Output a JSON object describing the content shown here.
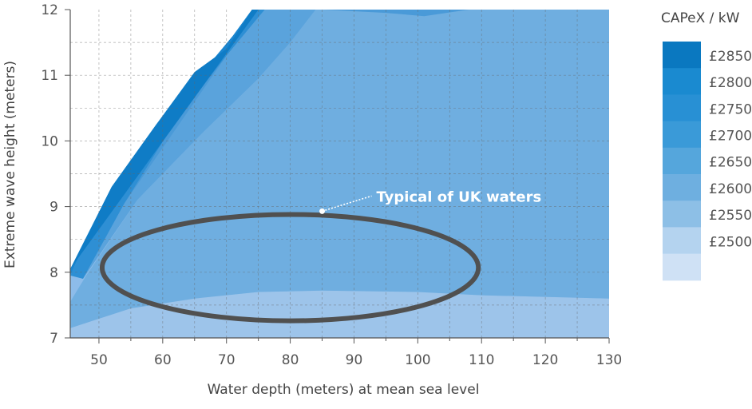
{
  "chart_data": {
    "type": "area",
    "xlabel": "Water depth (meters) at mean sea level",
    "ylabel": "Extreme wave height (meters)",
    "xlim": [
      45.5,
      130
    ],
    "ylim": [
      7,
      12
    ],
    "x_ticks": [
      50,
      60,
      70,
      80,
      90,
      100,
      110,
      120,
      130
    ],
    "y_ticks": [
      7,
      8,
      9,
      10,
      11,
      12
    ],
    "grid": true,
    "legend": {
      "title": "CAPeX / kW",
      "placement": "right",
      "entries": [
        {
          "label": "£2850",
          "color": "#0a78c0"
        },
        {
          "label": "£2800",
          "color": "#1a8ad0"
        },
        {
          "label": "£2750",
          "color": "#2890d4"
        },
        {
          "label": "£2700",
          "color": "#3a9ad8"
        },
        {
          "label": "£2650",
          "color": "#55a6dc"
        },
        {
          "label": "£2600",
          "color": "#6eafe0"
        },
        {
          "label": "£2550",
          "color": "#8dbfe6"
        },
        {
          "label": "£2500",
          "color": "#b4d3ef"
        },
        {
          "label": "",
          "color": "#cfe1f5"
        }
      ]
    },
    "regions": [
      {
        "level": "£2500",
        "color": "#9dc4ea",
        "boundary": [
          [
            45.5,
            7
          ],
          [
            45.5,
            8.05
          ],
          [
            75,
            12
          ],
          [
            130,
            12
          ],
          [
            130,
            7
          ]
        ]
      },
      {
        "level": "£2550",
        "color": "#8dbcea",
        "boundary": [
          [
            45.5,
            7.15
          ],
          [
            55,
            7.45
          ],
          [
            65,
            7.6
          ],
          [
            75,
            7.7
          ],
          [
            85,
            7.72
          ],
          [
            100,
            7.7
          ],
          [
            110,
            7.65
          ],
          [
            130,
            7.6
          ],
          [
            130,
            12
          ],
          [
            75,
            12
          ],
          [
            45.5,
            8.05
          ]
        ]
      },
      {
        "level": "£2600",
        "color": "#6faee0",
        "boundary": [
          [
            45.5,
            7.55
          ],
          [
            48,
            7.95
          ],
          [
            56,
            9.1
          ],
          [
            66,
            10.1
          ],
          [
            75,
            10.95
          ],
          [
            80,
            11.5
          ],
          [
            84,
            12
          ],
          [
            130,
            12
          ],
          [
            130,
            7.6
          ],
          [
            110,
            7.65
          ],
          [
            100,
            7.7
          ],
          [
            85,
            7.72
          ],
          [
            75,
            7.7
          ],
          [
            65,
            7.6
          ],
          [
            55,
            7.45
          ],
          [
            45.5,
            7.15
          ]
        ]
      },
      {
        "level": "£2650",
        "color": "#5aa3dc",
        "boundary": [
          [
            47.5,
            7.9
          ],
          [
            54,
            9.05
          ],
          [
            62,
            10.3
          ],
          [
            70,
            11.3
          ],
          [
            75,
            12
          ],
          [
            84,
            12
          ],
          [
            80,
            11.5
          ],
          [
            75,
            10.95
          ],
          [
            66,
            10.1
          ],
          [
            56,
            9.1
          ]
        ]
      },
      {
        "level": "£2700",
        "color": "#4a9ad8",
        "boundary": [
          [
            46.5,
            8
          ],
          [
            52,
            9.1
          ],
          [
            60,
            10.2
          ],
          [
            66,
            11
          ],
          [
            75,
            12
          ],
          [
            85,
            12
          ],
          [
            95,
            11.95
          ],
          [
            101,
            11.9
          ],
          [
            108,
            12
          ],
          [
            75,
            12
          ]
        ]
      },
      {
        "level": "£2750",
        "color": "#2e8fd4",
        "boundary": [
          [
            45.5,
            7.95
          ],
          [
            50,
            8.9
          ],
          [
            58,
            9.9
          ],
          [
            65,
            10.9
          ],
          [
            71,
            11.6
          ],
          [
            74,
            12
          ],
          [
            76,
            12
          ],
          [
            70,
            11.3
          ],
          [
            62,
            10.3
          ],
          [
            54,
            9.05
          ],
          [
            47.5,
            7.9
          ]
        ]
      },
      {
        "level": "£2800",
        "color": "#1b86d0",
        "boundary": [
          [
            45.5,
            8.05
          ],
          [
            52,
            9.3
          ],
          [
            59,
            10.25
          ],
          [
            65,
            11
          ],
          [
            70,
            11.4
          ],
          [
            74,
            12
          ],
          [
            71,
            11.6
          ],
          [
            65,
            10.9
          ],
          [
            58,
            9.9
          ],
          [
            50,
            8.9
          ],
          [
            45.5,
            7.95
          ]
        ]
      },
      {
        "level": "£2850",
        "color": "#0f7cc6",
        "boundary": [
          [
            45.5,
            8.05
          ],
          [
            75,
            12
          ],
          [
            74,
            12
          ],
          [
            70,
            11.4
          ],
          [
            65,
            11.05
          ],
          [
            59,
            10.25
          ],
          [
            52,
            9.3
          ]
        ]
      }
    ],
    "annotation": {
      "text": "Typical of UK waters",
      "point": [
        85,
        8.93
      ],
      "ellipse": {
        "center": [
          80,
          8.07
        ],
        "rx_data": 29.5,
        "ry_data": 0.81
      }
    }
  }
}
